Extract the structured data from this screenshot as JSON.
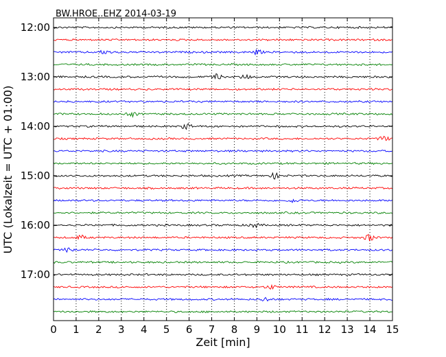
{
  "chart_data": {
    "type": "line",
    "title": "BW.HROE..EHZ 2014-03-19",
    "xlabel": "Zeit  [min]",
    "ylabel": "UTC (Lokalzeit = UTC + 01:00)",
    "xlim": [
      0,
      15
    ],
    "x_ticks": [
      "0",
      "1",
      "2",
      "3",
      "4",
      "5",
      "6",
      "7",
      "8",
      "9",
      "10",
      "11",
      "12",
      "13",
      "14",
      "15"
    ],
    "y_tick_labels": [
      "12:00",
      "13:00",
      "14:00",
      "15:00",
      "16:00",
      "17:00"
    ],
    "grid": "vertical dotted",
    "colors_cycle": [
      "#000000",
      "#ff0000",
      "#0000ff",
      "#008000"
    ],
    "series": [
      {
        "start": "12:00",
        "color": "#000000"
      },
      {
        "start": "12:15",
        "color": "#ff0000"
      },
      {
        "start": "12:30",
        "color": "#0000ff"
      },
      {
        "start": "12:45",
        "color": "#008000"
      },
      {
        "start": "13:00",
        "color": "#000000"
      },
      {
        "start": "13:15",
        "color": "#ff0000"
      },
      {
        "start": "13:30",
        "color": "#0000ff"
      },
      {
        "start": "13:45",
        "color": "#008000"
      },
      {
        "start": "14:00",
        "color": "#000000"
      },
      {
        "start": "14:15",
        "color": "#ff0000"
      },
      {
        "start": "14:30",
        "color": "#0000ff"
      },
      {
        "start": "14:45",
        "color": "#008000"
      },
      {
        "start": "15:00",
        "color": "#000000"
      },
      {
        "start": "15:15",
        "color": "#ff0000"
      },
      {
        "start": "15:30",
        "color": "#0000ff"
      },
      {
        "start": "15:45",
        "color": "#008000"
      },
      {
        "start": "16:00",
        "color": "#000000"
      },
      {
        "start": "16:15",
        "color": "#ff0000"
      },
      {
        "start": "16:30",
        "color": "#0000ff"
      },
      {
        "start": "16:45",
        "color": "#008000"
      },
      {
        "start": "17:00",
        "color": "#000000"
      },
      {
        "start": "17:15",
        "color": "#ff0000"
      },
      {
        "start": "17:30",
        "color": "#0000ff"
      },
      {
        "start": "17:45",
        "color": "#008000"
      }
    ],
    "bursts": [
      {
        "trace": 2,
        "x": 2.3,
        "amp": 3
      },
      {
        "trace": 2,
        "x": 9.0,
        "amp": 3.5
      },
      {
        "trace": 4,
        "x": 7.2,
        "amp": 3.5
      },
      {
        "trace": 4,
        "x": 8.5,
        "amp": 3
      },
      {
        "trace": 7,
        "x": 3.5,
        "amp": 3
      },
      {
        "trace": 8,
        "x": 5.9,
        "amp": 4
      },
      {
        "trace": 9,
        "x": 14.6,
        "amp": 3.5
      },
      {
        "trace": 12,
        "x": 9.8,
        "amp": 4
      },
      {
        "trace": 14,
        "x": 10.6,
        "amp": 2.5
      },
      {
        "trace": 16,
        "x": 8.9,
        "amp": 3
      },
      {
        "trace": 17,
        "x": 1.2,
        "amp": 3
      },
      {
        "trace": 17,
        "x": 14.0,
        "amp": 5
      },
      {
        "trace": 18,
        "x": 0.7,
        "amp": 3.5
      },
      {
        "trace": 21,
        "x": 9.6,
        "amp": 3
      },
      {
        "trace": 22,
        "x": 9.4,
        "amp": 3
      }
    ]
  }
}
